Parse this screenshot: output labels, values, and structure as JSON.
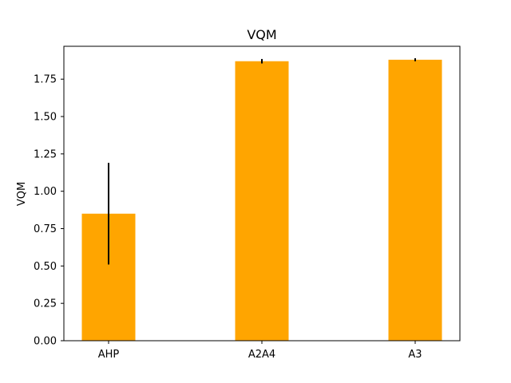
{
  "chart_data": {
    "type": "bar",
    "title": "VQM",
    "xlabel": "",
    "ylabel": "VQM",
    "categories": [
      "AHP",
      "A2A4",
      "A3"
    ],
    "values": [
      0.85,
      1.87,
      1.88
    ],
    "error_low": [
      0.51,
      1.855,
      1.87
    ],
    "error_high": [
      1.19,
      1.885,
      1.89
    ],
    "ylim": [
      0,
      1.97
    ],
    "yticks": [
      0.0,
      0.25,
      0.5,
      0.75,
      1.0,
      1.25,
      1.5,
      1.75
    ],
    "ytick_labels": [
      "0.00",
      "0.25",
      "0.50",
      "0.75",
      "1.00",
      "1.25",
      "1.50",
      "1.75"
    ],
    "grid": false,
    "bar_color": "#ffa500",
    "error_color": "#000000"
  }
}
